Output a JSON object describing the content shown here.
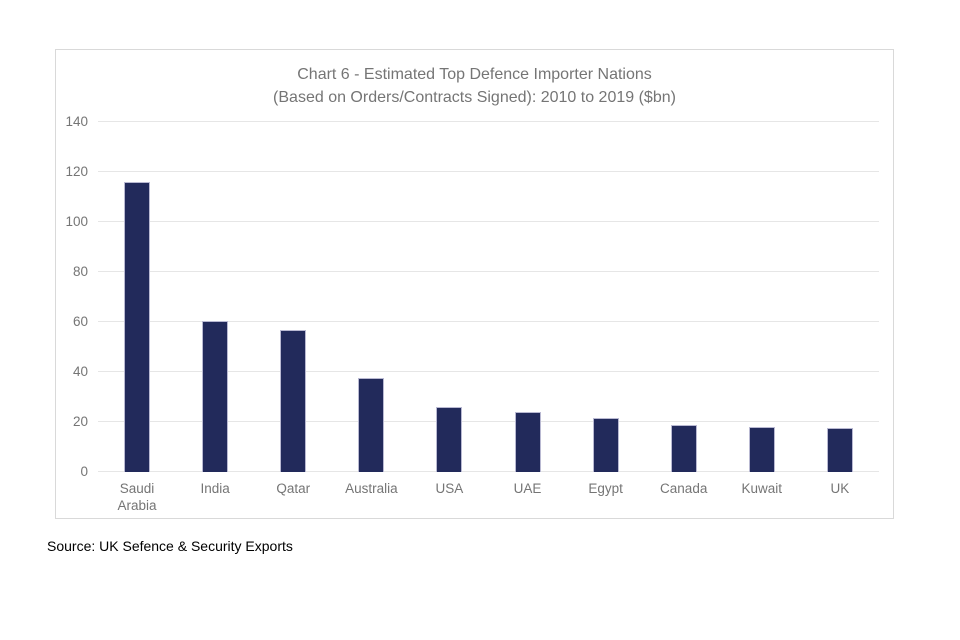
{
  "chart_data": {
    "type": "bar",
    "title_line1": "Chart 6 - Estimated Top Defence Importer Nations",
    "title_line2": "(Based on Orders/Contracts Signed): 2010 to 2019 ($bn)",
    "categories": [
      "Saudi Arabia",
      "India",
      "Qatar",
      "Australia",
      "USA",
      "UAE",
      "Egypt",
      "Canada",
      "Kuwait",
      "UK"
    ],
    "values": [
      116,
      60.5,
      57,
      37.5,
      26,
      24,
      21.5,
      19,
      18,
      17.5
    ],
    "xlabel": "",
    "ylabel": "",
    "ylim": [
      0,
      140
    ],
    "y_ticks": [
      0,
      20,
      40,
      60,
      80,
      100,
      120,
      140
    ],
    "grid": "horizontal",
    "legend": "none",
    "bar_color": "#222a5b",
    "bar_border_color": "#b9b9d2",
    "grid_color": "#e6e6e6",
    "axis_text_color": "#757575",
    "title_color": "#757575",
    "frame_border_color": "#d9d9d9"
  },
  "source": {
    "text": "Source: UK Sefence & Security Exports"
  }
}
